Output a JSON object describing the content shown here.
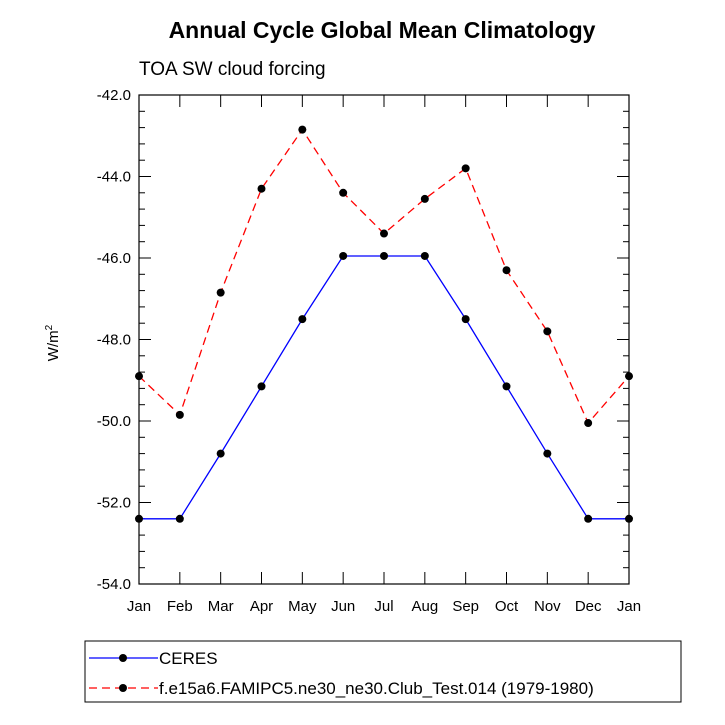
{
  "chart_data": {
    "type": "line",
    "title": "Annual Cycle Global Mean Climatology",
    "subtitle": "TOA SW cloud forcing",
    "ylabel": "W/m",
    "ylabel_superscript": "2",
    "xlabel": "",
    "categories": [
      "Jan",
      "Feb",
      "Mar",
      "Apr",
      "May",
      "Jun",
      "Jul",
      "Aug",
      "Sep",
      "Oct",
      "Nov",
      "Dec",
      "Jan"
    ],
    "ylim": [
      -54.0,
      -42.0
    ],
    "yticks": [
      -54.0,
      -52.0,
      -50.0,
      -48.0,
      -46.0,
      -44.0,
      -42.0
    ],
    "ytick_labels": [
      "-54.0",
      "-52.0",
      "-50.0",
      "-48.0",
      "-46.0",
      "-44.0",
      "-42.0"
    ],
    "series": [
      {
        "name": "CERES",
        "color": "#0000ff",
        "dash": "solid",
        "values": [
          -52.4,
          -52.4,
          -50.8,
          -49.15,
          -47.5,
          -45.95,
          -45.95,
          -45.95,
          -47.5,
          -49.15,
          -50.8,
          -52.4,
          -52.4
        ]
      },
      {
        "name": "f.e15a6.FAMIPC5.ne30_ne30.Club_Test.014 (1979-1980)",
        "color": "#ff0000",
        "dash": "dashed",
        "values": [
          -48.9,
          -49.85,
          -46.85,
          -44.3,
          -42.85,
          -44.4,
          -45.4,
          -44.55,
          -43.8,
          -46.3,
          -47.8,
          -50.05,
          -48.9
        ]
      }
    ],
    "legend_position": "bottom"
  }
}
